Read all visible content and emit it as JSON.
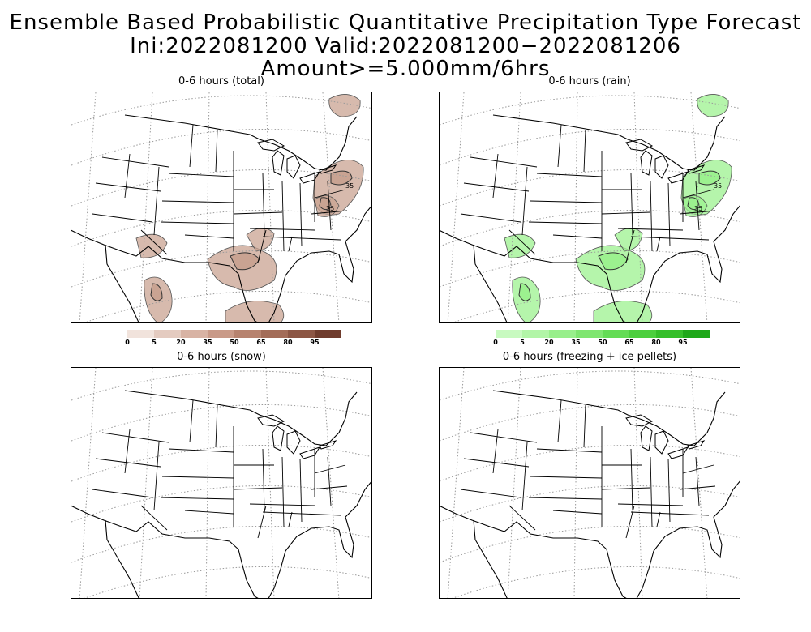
{
  "title_line1": "Ensemble Based Probabilistic Quantitative Precipitation Type Forecast",
  "title_line2": "Ini:2022081200 Valid:2022081200−2022081206 Amount>=5.000mm/6hrs",
  "panels": [
    {
      "title": "0-6 hours (total)",
      "fill": "#c9a392",
      "contour_label": "35"
    },
    {
      "title": "0-6 hours (rain)",
      "fill": "#9cf18f",
      "contour_label": "35"
    },
    {
      "title": "0-6 hours (snow)"
    },
    {
      "title": "0-6 hours (freezing + ice pellets)"
    }
  ],
  "legends": {
    "total": {
      "labels": [
        "0",
        "5",
        "20",
        "35",
        "50",
        "65",
        "80",
        "95"
      ],
      "colors": [
        "#f1e3dc",
        "#e4cbc0",
        "#d8b3a4",
        "#c99a88",
        "#b7836f",
        "#a36c58",
        "#8c5644",
        "#6f3c2d"
      ]
    },
    "rain": {
      "labels": [
        "0",
        "5",
        "20",
        "35",
        "50",
        "65",
        "80",
        "95"
      ],
      "colors": [
        "#c8fac0",
        "#b2f5a7",
        "#98ef8b",
        "#7fe670",
        "#64dc55",
        "#4ccf3e",
        "#35bf2a",
        "#1fa81a"
      ]
    }
  }
}
